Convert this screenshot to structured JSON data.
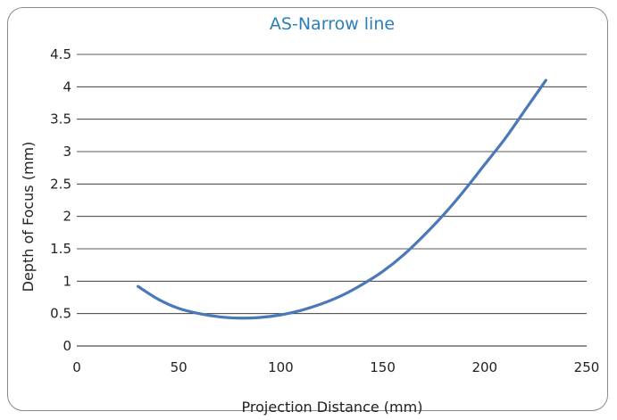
{
  "chart_data": {
    "type": "line",
    "title": "AS-Narrow line",
    "xlabel": "Projection Distance (mm)",
    "ylabel": "Depth of Focus (mm)",
    "xlim": [
      0,
      250
    ],
    "ylim": [
      0,
      4.5
    ],
    "x_ticks": [
      "0",
      "50",
      "100",
      "150",
      "200",
      "250"
    ],
    "y_ticks": [
      "0",
      "0.5",
      "1",
      "1.5",
      "2",
      "2.5",
      "3",
      "3.5",
      "4",
      "4.5"
    ],
    "grid": "horizontal",
    "legend": "none",
    "series": [
      {
        "color": "#4a78b8",
        "x": [
          30,
          40,
          50,
          60,
          70,
          80,
          90,
          100,
          110,
          120,
          130,
          140,
          150,
          160,
          170,
          180,
          190,
          200,
          210,
          220,
          230
        ],
        "y": [
          0.92,
          0.72,
          0.58,
          0.5,
          0.45,
          0.43,
          0.44,
          0.48,
          0.55,
          0.65,
          0.78,
          0.95,
          1.15,
          1.4,
          1.7,
          2.03,
          2.4,
          2.8,
          3.2,
          3.65,
          4.1
        ]
      }
    ]
  }
}
